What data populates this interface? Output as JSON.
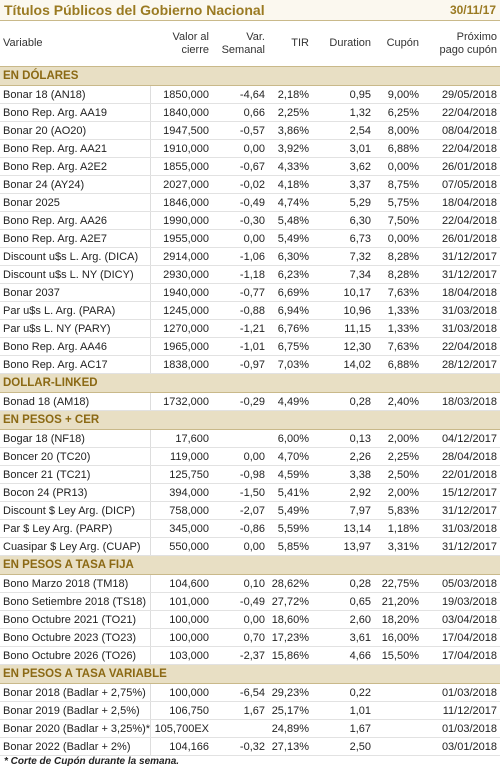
{
  "header": {
    "title": "Títulos Públicos del Gobierno Nacional",
    "date": "30/11/17"
  },
  "table": {
    "columns": [
      "Variable",
      "Valor al\ncierre",
      "Var.\nSemanal",
      "TIR",
      "Duration",
      "Cupón",
      "Próximo\npago cupón"
    ],
    "sections": [
      {
        "title": "EN DÓLARES",
        "rows": [
          [
            "Bonar 18 (AN18)",
            "1850,000",
            "-4,64",
            "2,18%",
            "0,95",
            "9,00%",
            "29/05/2018"
          ],
          [
            "Bono Rep. Arg. AA19",
            "1840,000",
            "0,66",
            "2,25%",
            "1,32",
            "6,25%",
            "22/04/2018"
          ],
          [
            "Bonar 20 (AO20)",
            "1947,500",
            "-0,57",
            "3,86%",
            "2,54",
            "8,00%",
            "08/04/2018"
          ],
          [
            "Bono Rep. Arg. AA21",
            "1910,000",
            "0,00",
            "3,92%",
            "3,01",
            "6,88%",
            "22/04/2018"
          ],
          [
            "Bono Rep. Arg. A2E2",
            "1855,000",
            "-0,67",
            "4,33%",
            "3,62",
            "0,00%",
            "26/01/2018"
          ],
          [
            "Bonar 24 (AY24)",
            "2027,000",
            "-0,02",
            "4,18%",
            "3,37",
            "8,75%",
            "07/05/2018"
          ],
          [
            "Bonar 2025",
            "1846,000",
            "-0,49",
            "4,74%",
            "5,29",
            "5,75%",
            "18/04/2018"
          ],
          [
            "Bono Rep. Arg. AA26",
            "1990,000",
            "-0,30",
            "5,48%",
            "6,30",
            "7,50%",
            "22/04/2018"
          ],
          [
            "Bono Rep. Arg. A2E7",
            "1955,000",
            "0,00",
            "5,49%",
            "6,73",
            "0,00%",
            "26/01/2018"
          ],
          [
            "Discount u$s L. Arg. (DICA)",
            "2914,000",
            "-1,06",
            "6,30%",
            "7,32",
            "8,28%",
            "31/12/2017"
          ],
          [
            "Discount u$s L. NY (DICY)",
            "2930,000",
            "-1,18",
            "6,23%",
            "7,34",
            "8,28%",
            "31/12/2017"
          ],
          [
            "Bonar 2037",
            "1940,000",
            "-0,77",
            "6,69%",
            "10,17",
            "7,63%",
            "18/04/2018"
          ],
          [
            "Par u$s L. Arg. (PARA)",
            "1245,000",
            "-0,88",
            "6,94%",
            "10,96",
            "1,33%",
            "31/03/2018"
          ],
          [
            "Par u$s L. NY (PARY)",
            "1270,000",
            "-1,21",
            "6,76%",
            "11,15",
            "1,33%",
            "31/03/2018"
          ],
          [
            "Bono Rep. Arg. AA46",
            "1965,000",
            "-1,01",
            "6,75%",
            "12,30",
            "7,63%",
            "22/04/2018"
          ],
          [
            "Bono Rep. Arg. AC17",
            "1838,000",
            "-0,97",
            "7,03%",
            "14,02",
            "6,88%",
            "28/12/2017"
          ]
        ]
      },
      {
        "title": "DOLLAR-LINKED",
        "rows": [
          [
            "Bonad 18 (AM18)",
            "1732,000",
            "-0,29",
            "4,49%",
            "0,28",
            "2,40%",
            "18/03/2018"
          ]
        ]
      },
      {
        "title": "EN PESOS + CER",
        "rows": [
          [
            "Bogar 18 (NF18)",
            "17,600",
            null,
            "6,00%",
            "0,13",
            "2,00%",
            "04/12/2017"
          ],
          [
            "Boncer 20 (TC20)",
            "119,000",
            "0,00",
            "4,70%",
            "2,26",
            "2,25%",
            "28/04/2018"
          ],
          [
            "Boncer 21 (TC21)",
            "125,750",
            "-0,98",
            "4,59%",
            "3,38",
            "2,50%",
            "22/01/2018"
          ],
          [
            "Bocon 24 (PR13)",
            "394,000",
            "-1,50",
            "5,41%",
            "2,92",
            "2,00%",
            "15/12/2017"
          ],
          [
            "Discount $ Ley Arg. (DICP)",
            "758,000",
            "-2,07",
            "5,49%",
            "7,97",
            "5,83%",
            "31/12/2017"
          ],
          [
            "Par $ Ley Arg. (PARP)",
            "345,000",
            "-0,86",
            "5,59%",
            "13,14",
            "1,18%",
            "31/03/2018"
          ],
          [
            "Cuasipar $ Ley Arg. (CUAP)",
            "550,000",
            "0,00",
            "5,85%",
            "13,97",
            "3,31%",
            "31/12/2017"
          ]
        ]
      },
      {
        "title": "EN PESOS A TASA FIJA",
        "rows": [
          [
            "Bono Marzo 2018 (TM18)",
            "104,600",
            "0,10",
            "28,62%",
            "0,28",
            "22,75%",
            "05/03/2018"
          ],
          [
            "Bono Setiembre 2018 (TS18)",
            "101,000",
            "-0,49",
            "27,72%",
            "0,65",
            "21,20%",
            "19/03/2018"
          ],
          [
            "Bono Octubre 2021 (TO21)",
            "100,000",
            "0,00",
            "18,60%",
            "2,60",
            "18,20%",
            "03/04/2018"
          ],
          [
            "Bono Octubre 2023 (TO23)",
            "100,000",
            "0,70",
            "17,23%",
            "3,61",
            "16,00%",
            "17/04/2018"
          ],
          [
            "Bono Octubre 2026 (TO26)",
            "103,000",
            "-2,37",
            "15,86%",
            "4,66",
            "15,50%",
            "17/04/2018"
          ]
        ]
      },
      {
        "title": "EN PESOS A TASA VARIABLE",
        "rows": [
          [
            "Bonar 2018 (Badlar + 2,75%)",
            "100,000",
            "-6,54",
            "29,23%",
            "0,22",
            null,
            "01/03/2018"
          ],
          [
            "Bonar 2019 (Badlar + 2,5%)",
            "106,750",
            "1,67",
            "25,17%",
            "1,01",
            null,
            "11/12/2017"
          ],
          [
            "Bonar 2020 (Badlar + 3,25%)*",
            "105,700EX",
            null,
            "24,89%",
            "1,67",
            null,
            "01/03/2018"
          ],
          [
            "Bonar 2022 (Badlar + 2%)",
            "104,166",
            "-0,32",
            "27,13%",
            "2,50",
            null,
            "03/01/2018"
          ]
        ]
      }
    ]
  },
  "footnote": "* Corte de Cupón durante la semana."
}
